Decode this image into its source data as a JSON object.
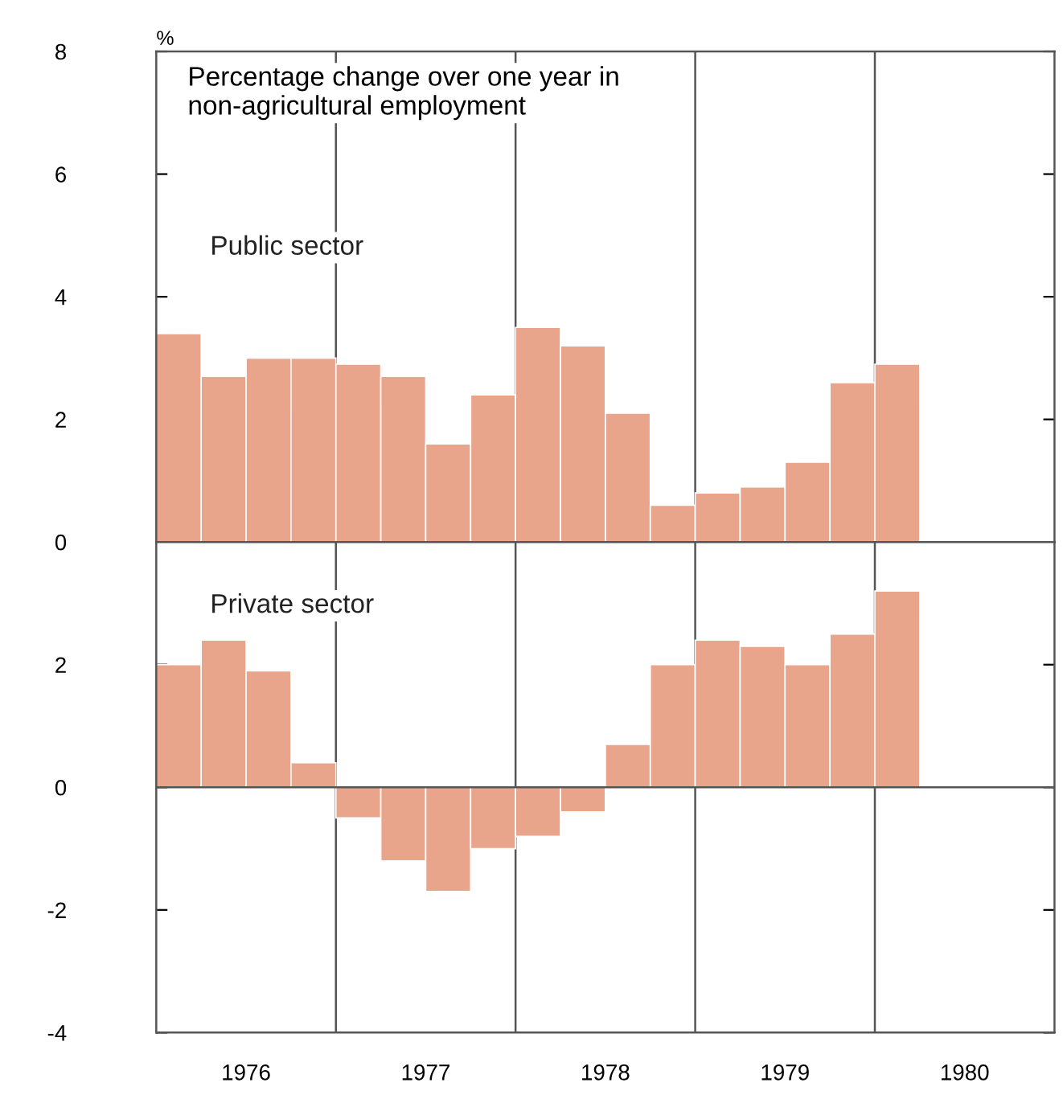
{
  "chart_data": [
    {
      "type": "bar",
      "title": "Percentage change over one year in\nnon-agricultural employment",
      "ylabel": "%",
      "series": [
        {
          "name": "Public sector",
          "color": "#e9a48c",
          "x": [
            1976.125,
            1976.375,
            1976.625,
            1976.875,
            1977.125,
            1977.375,
            1977.625,
            1977.875,
            1978.125,
            1978.375,
            1978.625,
            1978.875,
            1979.125,
            1979.375,
            1979.625,
            1979.875,
            1980.125
          ],
          "values": [
            3.4,
            2.7,
            3.0,
            3.0,
            2.9,
            2.7,
            1.6,
            2.4,
            3.5,
            3.2,
            2.1,
            0.6,
            0.8,
            0.9,
            1.3,
            2.6,
            2.9
          ]
        }
      ],
      "xlim": [
        1976,
        1981
      ],
      "ylim": [
        0,
        8
      ],
      "yticks": [
        0,
        2,
        4,
        6,
        8
      ],
      "tick_labels": "y",
      "grid": false,
      "legend": false,
      "ref_lines": [
        {
          "axis": "x",
          "value": 1977,
          "color": "#555555"
        },
        {
          "axis": "x",
          "value": 1978,
          "color": "#555555"
        },
        {
          "axis": "x",
          "value": 1979,
          "color": "#555555"
        },
        {
          "axis": "x",
          "value": 1980,
          "color": "#555555"
        }
      ]
    },
    {
      "type": "bar",
      "series": [
        {
          "name": "Private sector",
          "color": "#e9a48c",
          "x": [
            1976.125,
            1976.375,
            1976.625,
            1976.875,
            1977.125,
            1977.375,
            1977.625,
            1977.875,
            1978.125,
            1978.375,
            1978.625,
            1978.875,
            1979.125,
            1979.375,
            1979.625,
            1979.875,
            1980.125
          ],
          "values": [
            2.0,
            2.4,
            1.9,
            0.4,
            -0.5,
            -1.2,
            -1.7,
            -1.0,
            -0.8,
            -0.4,
            0.7,
            2.0,
            2.4,
            2.3,
            2.0,
            2.5,
            3.2
          ]
        }
      ],
      "xlim": [
        1976,
        1981
      ],
      "xticks": [
        {
          "value": 1976.5,
          "label": "1976"
        },
        {
          "value": 1977.5,
          "label": "1977"
        },
        {
          "value": 1978.5,
          "label": "1978"
        },
        {
          "value": 1979.5,
          "label": "1979"
        },
        {
          "value": 1980.5,
          "label": "1980"
        }
      ],
      "ylim": [
        -4,
        4
      ],
      "yticks": [
        -4,
        -2,
        0,
        2
      ],
      "grid": false,
      "legend": false,
      "ref_lines": [
        {
          "axis": "y",
          "value": 0,
          "color": "#555555"
        },
        {
          "axis": "x",
          "value": 1977,
          "color": "#555555"
        },
        {
          "axis": "x",
          "value": 1978,
          "color": "#555555"
        },
        {
          "axis": "x",
          "value": 1979,
          "color": "#555555"
        },
        {
          "axis": "x",
          "value": 1980,
          "color": "#555555"
        }
      ]
    }
  ]
}
